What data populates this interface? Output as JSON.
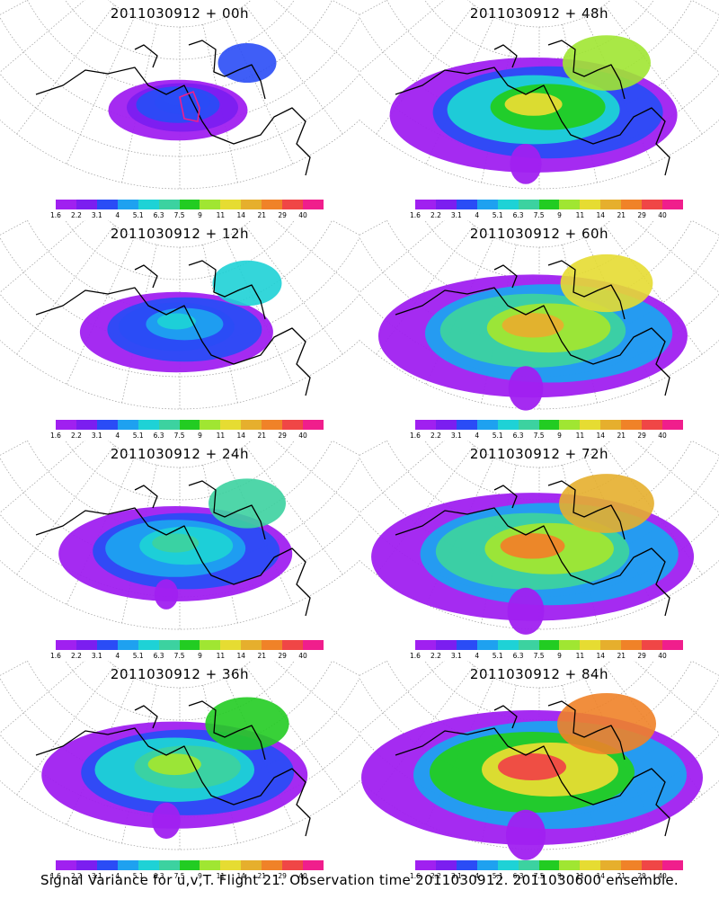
{
  "chart_data": {
    "type": "heatmap",
    "caption": "Signal Variance for u,v,T. Flight 21. Observation time 2011030912. 2011030600 ensemble.",
    "colorbar": {
      "labels": [
        "1.6",
        "2.2",
        "3.1",
        "4",
        "5.1",
        "6.3",
        "7.5",
        "9",
        "11",
        "14",
        "21",
        "29",
        "40"
      ],
      "colors": [
        "#a020f0",
        "#7b1ef0",
        "#2a4cf6",
        "#1ea1f0",
        "#1ed2d6",
        "#3cd2a0",
        "#22cc22",
        "#a0e632",
        "#e6dc32",
        "#e6af2d",
        "#f08228",
        "#f04646",
        "#f01e8c"
      ]
    },
    "panels": [
      {
        "title": "2011030912 + 00h",
        "lead_hours": 0,
        "spread": 0.25,
        "intensity": 0.15
      },
      {
        "title": "2011030912 + 12h",
        "lead_hours": 12,
        "spread": 0.45,
        "intensity": 0.3
      },
      {
        "title": "2011030912 + 24h",
        "lead_hours": 24,
        "spread": 0.6,
        "intensity": 0.4
      },
      {
        "title": "2011030912 + 36h",
        "lead_hours": 36,
        "spread": 0.72,
        "intensity": 0.5
      },
      {
        "title": "2011030912 + 48h",
        "lead_hours": 48,
        "spread": 0.8,
        "intensity": 0.58
      },
      {
        "title": "2011030912 + 60h",
        "lead_hours": 60,
        "spread": 0.88,
        "intensity": 0.66
      },
      {
        "title": "2011030912 + 72h",
        "lead_hours": 72,
        "spread": 0.93,
        "intensity": 0.75
      },
      {
        "title": "2011030912 + 84h",
        "lead_hours": 84,
        "spread": 1.0,
        "intensity": 0.85
      }
    ]
  }
}
